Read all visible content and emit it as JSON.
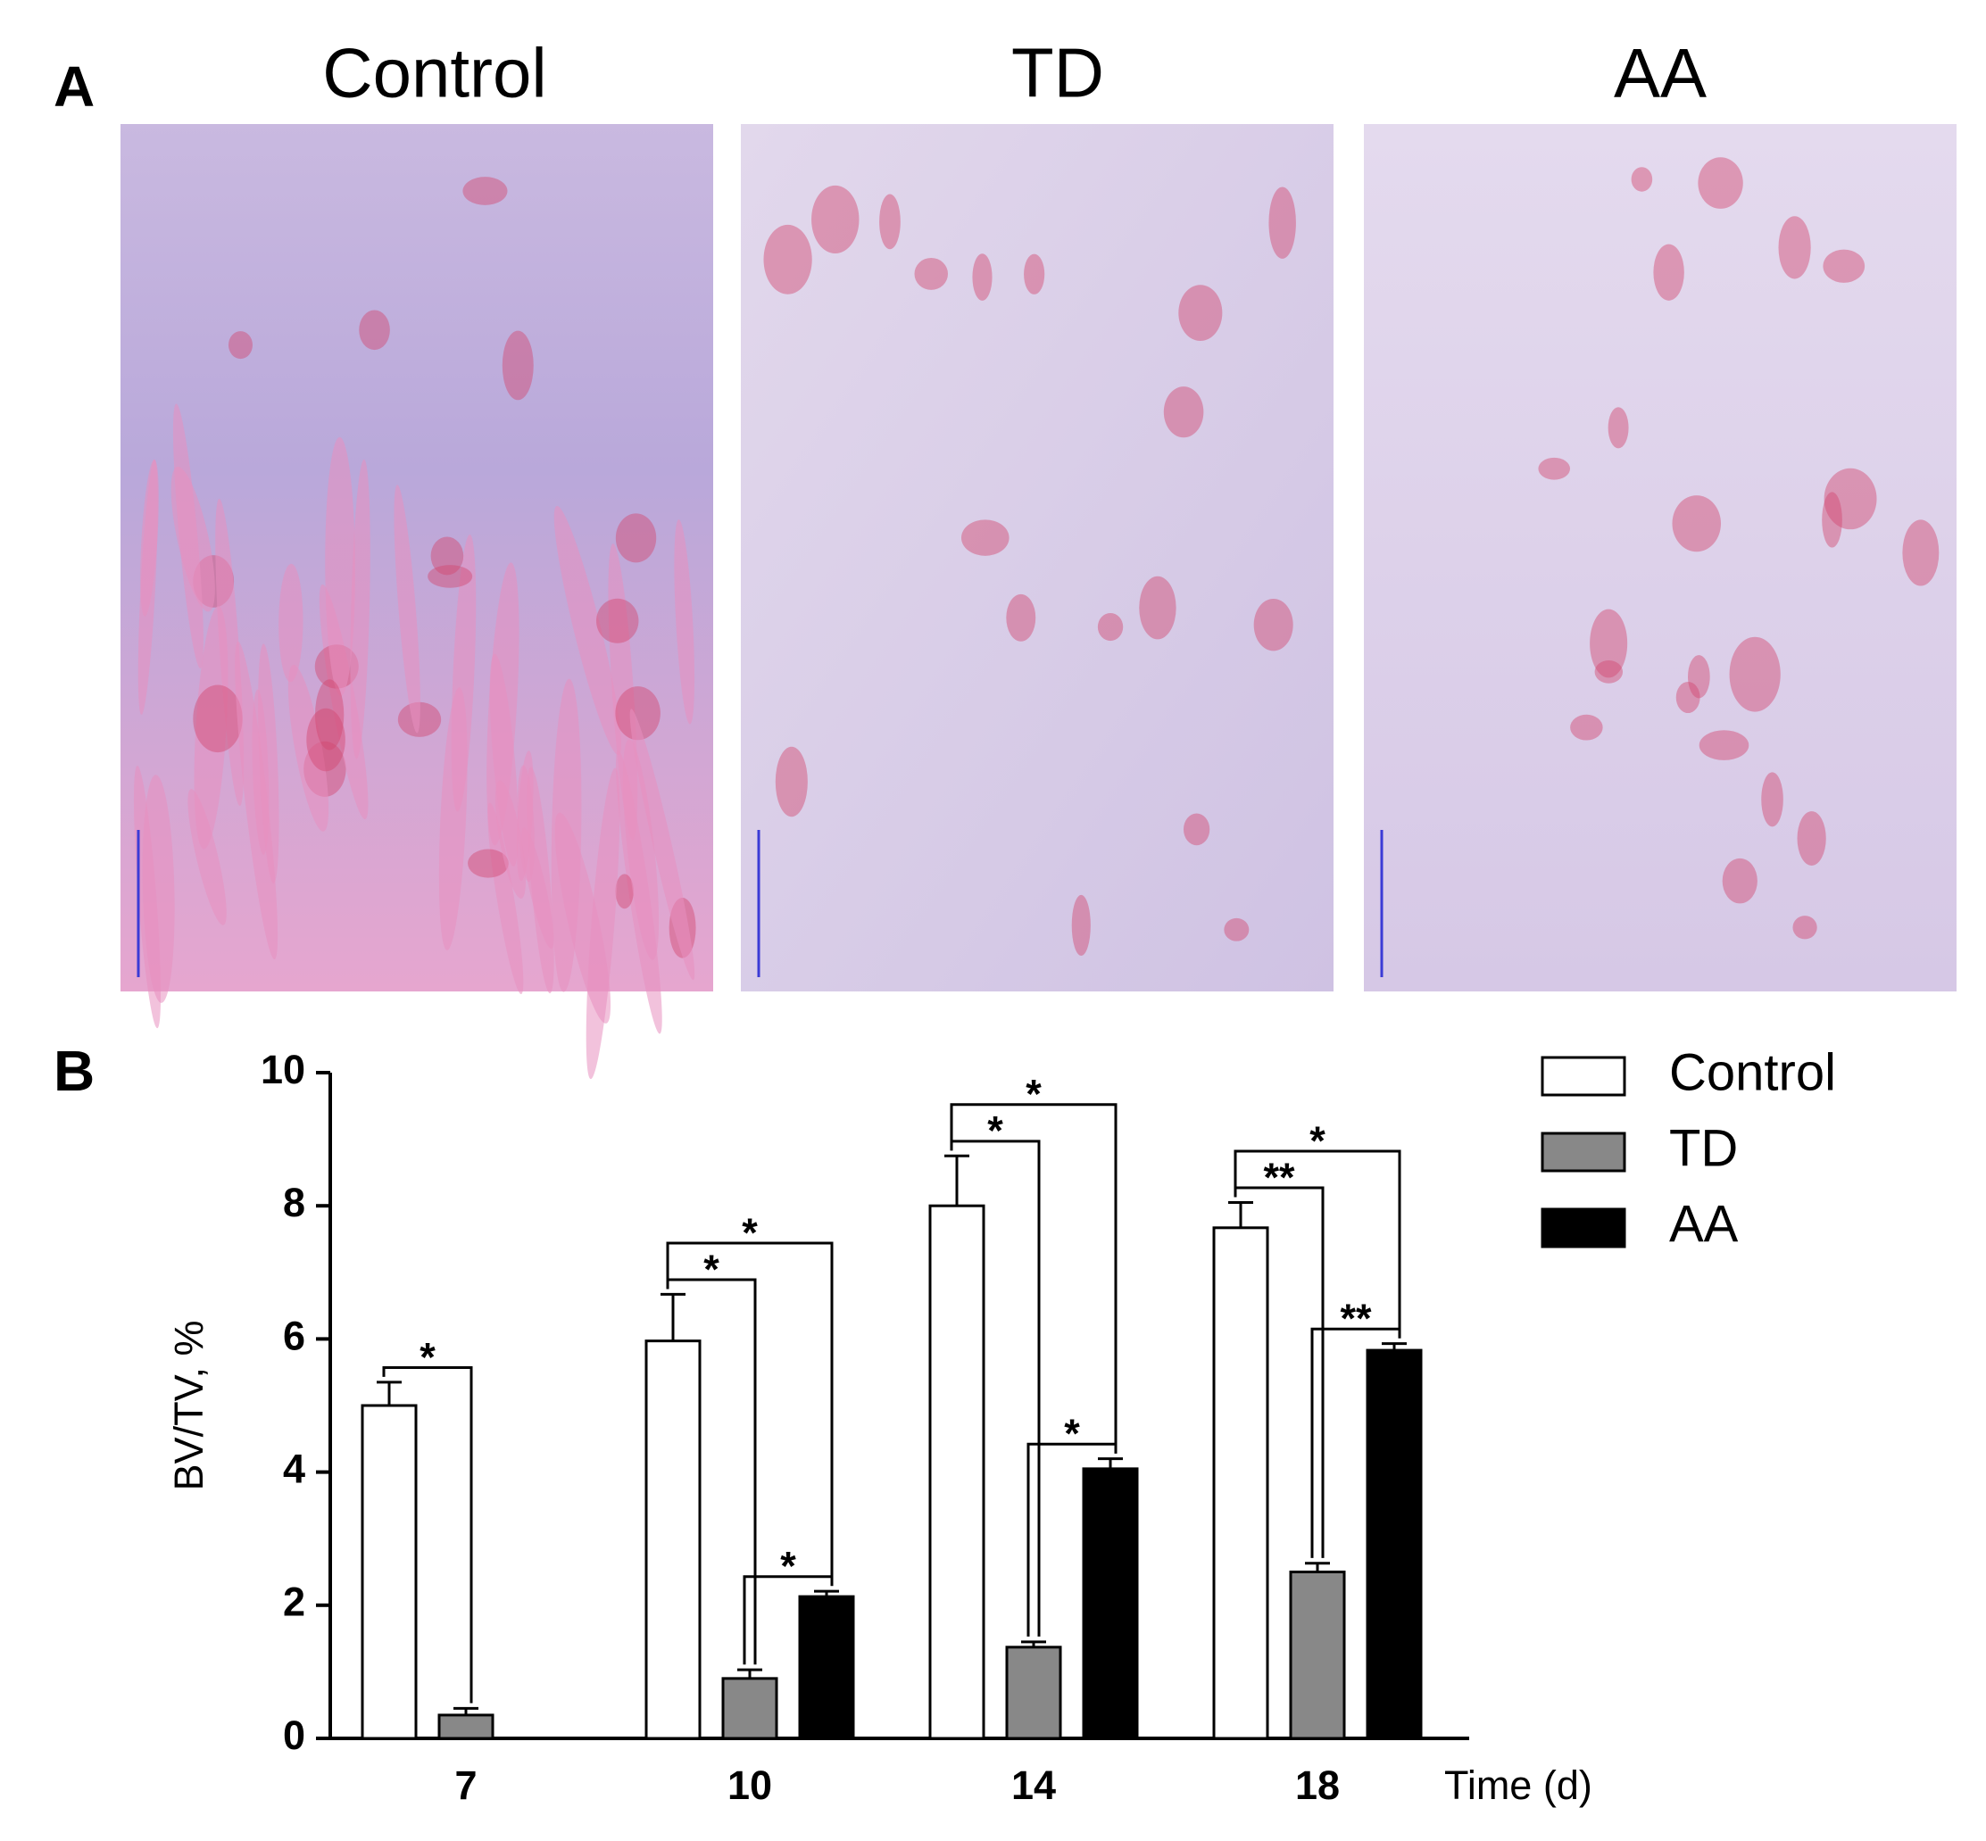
{
  "panel_a": {
    "label": "A",
    "image_titles": [
      "Control",
      "TD",
      "AA"
    ]
  },
  "chart_data": {
    "type": "bar",
    "panel_label": "B",
    "y_label": "BV/TV, %",
    "x_label": "Time (d)",
    "categories": [
      "7",
      "10",
      "14",
      "18"
    ],
    "series": [
      {
        "name": "Control",
        "color": "#ffffff",
        "values": [
          5.0,
          5.97,
          8.0,
          7.67
        ],
        "errors": [
          0.35,
          0.7,
          0.75,
          0.38
        ]
      },
      {
        "name": "TD",
        "color": "#888888",
        "values": [
          0.35,
          0.9,
          1.37,
          2.5
        ],
        "errors": [
          0.1,
          0.13,
          0.08,
          0.13
        ]
      },
      {
        "name": "AA",
        "color": "#000000",
        "values": [
          null,
          2.13,
          4.05,
          5.83
        ],
        "errors": [
          null,
          0.08,
          0.15,
          0.1
        ]
      }
    ],
    "ylim": [
      0,
      10
    ],
    "yticks": [
      0,
      2,
      4,
      6,
      8,
      10
    ],
    "annotations": [
      {
        "text": "*",
        "category": 0,
        "from": 0,
        "to": 1
      },
      {
        "text": "*",
        "category": 1,
        "from": 0,
        "to": 1
      },
      {
        "text": "*",
        "category": 1,
        "from": 0,
        "to": 2
      },
      {
        "text": "*",
        "category": 1,
        "from": 1,
        "to": 2
      },
      {
        "text": "*",
        "category": 2,
        "from": 0,
        "to": 1
      },
      {
        "text": "*",
        "category": 2,
        "from": 0,
        "to": 2
      },
      {
        "text": "*",
        "category": 2,
        "from": 1,
        "to": 2
      },
      {
        "text": "**",
        "category": 3,
        "from": 0,
        "to": 1
      },
      {
        "text": "*",
        "category": 3,
        "from": 0,
        "to": 2
      },
      {
        "text": "**",
        "category": 3,
        "from": 1,
        "to": 2
      }
    ]
  }
}
